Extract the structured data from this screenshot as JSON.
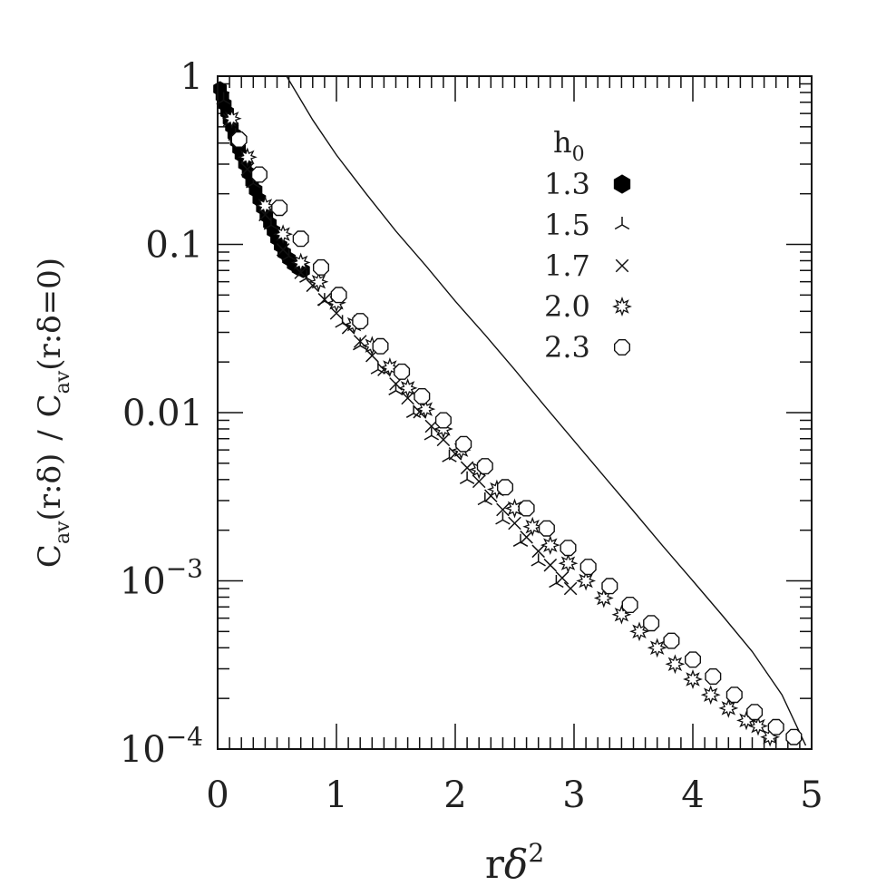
{
  "chart_data": {
    "type": "scatter",
    "title": "",
    "xlabel": {
      "base": "r",
      "greek": "δ",
      "exp": "2"
    },
    "ylabel": {
      "num_C": "C",
      "num_sub": "av",
      "num_arg": "(r:δ)",
      "sep": "/",
      "den_C": "C",
      "den_sub": "av",
      "den_arg": "(r:δ=0)"
    },
    "xlim": [
      0,
      5
    ],
    "ylim": [
      0.0001,
      1
    ],
    "yscale": "log",
    "x_ticks": [
      {
        "value": 0,
        "label": "0"
      },
      {
        "value": 1,
        "label": "1"
      },
      {
        "value": 2,
        "label": "2"
      },
      {
        "value": 3,
        "label": "3"
      },
      {
        "value": 4,
        "label": "4"
      },
      {
        "value": 5,
        "label": "5"
      }
    ],
    "y_ticks": [
      {
        "value": 1,
        "label": "1",
        "exp": ""
      },
      {
        "value": 0.1,
        "label": "0.1",
        "exp": ""
      },
      {
        "value": 0.01,
        "label": "0.01",
        "exp": ""
      },
      {
        "value": 0.001,
        "label": "10",
        "exp": "−3"
      },
      {
        "value": 0.0001,
        "label": "10",
        "exp": "−4"
      }
    ],
    "legend": {
      "title": "h",
      "title_sub": "0",
      "placement": "top-right",
      "entries": [
        {
          "label": "1.3",
          "marker": "filled-hexagon"
        },
        {
          "label": "1.5",
          "marker": "tripod"
        },
        {
          "label": "1.7",
          "marker": "cross"
        },
        {
          "label": "2.0",
          "marker": "star"
        },
        {
          "label": "2.3",
          "marker": "open-circle"
        }
      ]
    },
    "reference_curve": {
      "name": "",
      "points": [
        {
          "x": 0.58,
          "y": 1.0
        },
        {
          "x": 0.8,
          "y": 0.55
        },
        {
          "x": 1.0,
          "y": 0.34
        },
        {
          "x": 1.25,
          "y": 0.2
        },
        {
          "x": 1.5,
          "y": 0.12
        },
        {
          "x": 1.75,
          "y": 0.075
        },
        {
          "x": 2.0,
          "y": 0.046
        },
        {
          "x": 2.25,
          "y": 0.029
        },
        {
          "x": 2.5,
          "y": 0.018
        },
        {
          "x": 2.75,
          "y": 0.011
        },
        {
          "x": 3.0,
          "y": 0.0068
        },
        {
          "x": 3.25,
          "y": 0.0042
        },
        {
          "x": 3.5,
          "y": 0.0026
        },
        {
          "x": 3.75,
          "y": 0.0016
        },
        {
          "x": 4.0,
          "y": 0.001
        },
        {
          "x": 4.25,
          "y": 0.00062
        },
        {
          "x": 4.5,
          "y": 0.00038
        },
        {
          "x": 4.75,
          "y": 0.00021
        },
        {
          "x": 4.95,
          "y": 0.000105
        }
      ]
    },
    "series": [
      {
        "name": "1.3",
        "marker": "filled-hexagon",
        "points": [
          {
            "x": 0.02,
            "y": 0.84
          },
          {
            "x": 0.04,
            "y": 0.76
          },
          {
            "x": 0.06,
            "y": 0.68
          },
          {
            "x": 0.08,
            "y": 0.61
          },
          {
            "x": 0.1,
            "y": 0.55
          },
          {
            "x": 0.12,
            "y": 0.5
          },
          {
            "x": 0.14,
            "y": 0.45
          },
          {
            "x": 0.16,
            "y": 0.41
          },
          {
            "x": 0.18,
            "y": 0.37
          },
          {
            "x": 0.2,
            "y": 0.34
          },
          {
            "x": 0.23,
            "y": 0.3
          },
          {
            "x": 0.26,
            "y": 0.265
          },
          {
            "x": 0.29,
            "y": 0.235
          },
          {
            "x": 0.32,
            "y": 0.21
          },
          {
            "x": 0.35,
            "y": 0.185
          },
          {
            "x": 0.38,
            "y": 0.165
          },
          {
            "x": 0.41,
            "y": 0.148
          },
          {
            "x": 0.44,
            "y": 0.133
          },
          {
            "x": 0.47,
            "y": 0.12
          },
          {
            "x": 0.5,
            "y": 0.108
          },
          {
            "x": 0.53,
            "y": 0.098
          },
          {
            "x": 0.56,
            "y": 0.089
          },
          {
            "x": 0.6,
            "y": 0.082
          },
          {
            "x": 0.64,
            "y": 0.076
          },
          {
            "x": 0.68,
            "y": 0.072
          },
          {
            "x": 0.72,
            "y": 0.07
          }
        ]
      },
      {
        "name": "1.5",
        "marker": "tripod",
        "points": [
          {
            "x": 0.05,
            "y": 0.72
          },
          {
            "x": 0.15,
            "y": 0.44
          },
          {
            "x": 0.3,
            "y": 0.23
          },
          {
            "x": 0.45,
            "y": 0.13
          },
          {
            "x": 0.6,
            "y": 0.085
          },
          {
            "x": 0.75,
            "y": 0.063
          },
          {
            "x": 0.9,
            "y": 0.046
          },
          {
            "x": 1.05,
            "y": 0.034
          },
          {
            "x": 1.2,
            "y": 0.025
          },
          {
            "x": 1.35,
            "y": 0.018
          },
          {
            "x": 1.5,
            "y": 0.0135
          },
          {
            "x": 1.65,
            "y": 0.0099
          },
          {
            "x": 1.8,
            "y": 0.0073
          },
          {
            "x": 1.95,
            "y": 0.0054
          },
          {
            "x": 2.1,
            "y": 0.004
          },
          {
            "x": 2.25,
            "y": 0.003
          },
          {
            "x": 2.4,
            "y": 0.0023
          },
          {
            "x": 2.55,
            "y": 0.0017
          },
          {
            "x": 2.7,
            "y": 0.0013
          },
          {
            "x": 2.85,
            "y": 0.00097
          }
        ]
      },
      {
        "name": "1.7",
        "marker": "cross",
        "points": [
          {
            "x": 0.1,
            "y": 0.55
          },
          {
            "x": 0.25,
            "y": 0.28
          },
          {
            "x": 0.4,
            "y": 0.15
          },
          {
            "x": 0.55,
            "y": 0.093
          },
          {
            "x": 0.7,
            "y": 0.068
          },
          {
            "x": 0.8,
            "y": 0.057
          },
          {
            "x": 0.9,
            "y": 0.047
          },
          {
            "x": 1.0,
            "y": 0.039
          },
          {
            "x": 1.1,
            "y": 0.032
          },
          {
            "x": 1.2,
            "y": 0.0265
          },
          {
            "x": 1.3,
            "y": 0.0218
          },
          {
            "x": 1.4,
            "y": 0.018
          },
          {
            "x": 1.5,
            "y": 0.0148
          },
          {
            "x": 1.6,
            "y": 0.0122
          },
          {
            "x": 1.7,
            "y": 0.0101
          },
          {
            "x": 1.8,
            "y": 0.0083
          },
          {
            "x": 1.9,
            "y": 0.0069
          },
          {
            "x": 2.0,
            "y": 0.0057
          },
          {
            "x": 2.1,
            "y": 0.0047
          },
          {
            "x": 2.2,
            "y": 0.0039
          },
          {
            "x": 2.3,
            "y": 0.0032
          },
          {
            "x": 2.4,
            "y": 0.00265
          },
          {
            "x": 2.5,
            "y": 0.0022
          },
          {
            "x": 2.6,
            "y": 0.00182
          },
          {
            "x": 2.7,
            "y": 0.0015
          },
          {
            "x": 2.8,
            "y": 0.00124
          },
          {
            "x": 2.9,
            "y": 0.00104
          },
          {
            "x": 2.97,
            "y": 0.0009
          }
        ]
      },
      {
        "name": "2.0",
        "marker": "star",
        "points": [
          {
            "x": 0.12,
            "y": 0.56
          },
          {
            "x": 0.25,
            "y": 0.33
          },
          {
            "x": 0.4,
            "y": 0.17
          },
          {
            "x": 0.55,
            "y": 0.115
          },
          {
            "x": 0.7,
            "y": 0.078
          },
          {
            "x": 0.85,
            "y": 0.06
          },
          {
            "x": 1.0,
            "y": 0.045
          },
          {
            "x": 1.15,
            "y": 0.0335
          },
          {
            "x": 1.3,
            "y": 0.025
          },
          {
            "x": 1.45,
            "y": 0.0186
          },
          {
            "x": 1.6,
            "y": 0.014
          },
          {
            "x": 1.75,
            "y": 0.0105
          },
          {
            "x": 1.9,
            "y": 0.008
          },
          {
            "x": 2.05,
            "y": 0.006
          },
          {
            "x": 2.2,
            "y": 0.0046
          },
          {
            "x": 2.35,
            "y": 0.0035
          },
          {
            "x": 2.5,
            "y": 0.0027
          },
          {
            "x": 2.65,
            "y": 0.0021
          },
          {
            "x": 2.8,
            "y": 0.00163
          },
          {
            "x": 2.95,
            "y": 0.00127
          },
          {
            "x": 3.1,
            "y": 0.001
          },
          {
            "x": 3.25,
            "y": 0.00079
          },
          {
            "x": 3.4,
            "y": 0.00063
          },
          {
            "x": 3.55,
            "y": 0.0005
          },
          {
            "x": 3.7,
            "y": 0.0004
          },
          {
            "x": 3.85,
            "y": 0.00032
          },
          {
            "x": 4.0,
            "y": 0.00026
          },
          {
            "x": 4.15,
            "y": 0.00021
          },
          {
            "x": 4.3,
            "y": 0.000175
          },
          {
            "x": 4.45,
            "y": 0.000148
          },
          {
            "x": 4.55,
            "y": 0.000137
          },
          {
            "x": 4.65,
            "y": 0.000118
          }
        ]
      },
      {
        "name": "2.3",
        "marker": "open-circle",
        "points": [
          {
            "x": 0.18,
            "y": 0.42
          },
          {
            "x": 0.35,
            "y": 0.26
          },
          {
            "x": 0.52,
            "y": 0.165
          },
          {
            "x": 0.7,
            "y": 0.108
          },
          {
            "x": 0.87,
            "y": 0.073
          },
          {
            "x": 1.02,
            "y": 0.05
          },
          {
            "x": 1.2,
            "y": 0.035
          },
          {
            "x": 1.37,
            "y": 0.0248
          },
          {
            "x": 1.55,
            "y": 0.0175
          },
          {
            "x": 1.72,
            "y": 0.0125
          },
          {
            "x": 1.9,
            "y": 0.009
          },
          {
            "x": 2.07,
            "y": 0.0065
          },
          {
            "x": 2.25,
            "y": 0.0048
          },
          {
            "x": 2.42,
            "y": 0.0036
          },
          {
            "x": 2.6,
            "y": 0.0027
          },
          {
            "x": 2.77,
            "y": 0.00205
          },
          {
            "x": 2.95,
            "y": 0.00157
          },
          {
            "x": 3.12,
            "y": 0.00121
          },
          {
            "x": 3.3,
            "y": 0.00093
          },
          {
            "x": 3.47,
            "y": 0.00072
          },
          {
            "x": 3.65,
            "y": 0.00056
          },
          {
            "x": 3.82,
            "y": 0.00044
          },
          {
            "x": 4.0,
            "y": 0.00034
          },
          {
            "x": 4.17,
            "y": 0.00027
          },
          {
            "x": 4.35,
            "y": 0.00021
          },
          {
            "x": 4.52,
            "y": 0.000166
          },
          {
            "x": 4.7,
            "y": 0.000135
          },
          {
            "x": 4.85,
            "y": 0.000118
          }
        ]
      }
    ]
  }
}
